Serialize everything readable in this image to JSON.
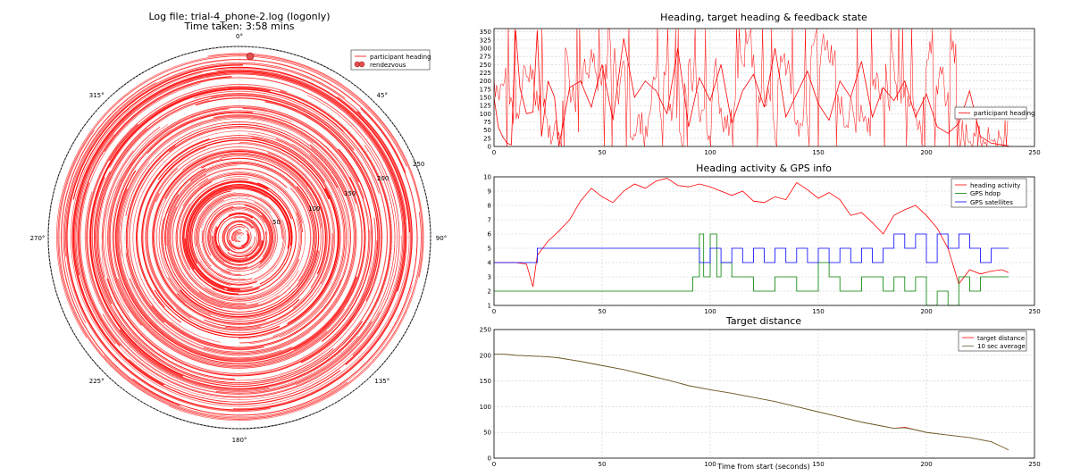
{
  "figure": {
    "polar": {
      "title_line1": "Log file: trial-4_phone-2.log (logonly)",
      "title_line2": "Time taken: 3:58 mins",
      "angle_labels": [
        "0°",
        "45°",
        "90°",
        "135°",
        "180°",
        "225°",
        "270°",
        "315°"
      ],
      "radial_ticks": [
        50,
        100,
        150,
        200,
        250
      ],
      "legend": [
        "participant heading",
        "rendezvous"
      ],
      "color": "#ff0000"
    },
    "heading": {
      "title": "Heading, target heading & feedback state",
      "legend": [
        "participant heading"
      ]
    },
    "activity": {
      "title": "Heading activity & GPS info",
      "legend": [
        "heading activity",
        "GPS hdop",
        "GPS satellites"
      ]
    },
    "distance": {
      "title": "Target distance",
      "xlabel": "Time from start (seconds)",
      "legend": [
        "target distance",
        "10 sec average"
      ]
    }
  },
  "chart_data": [
    {
      "type": "scatter",
      "subtype": "polar",
      "title": "Log file: trial-4_phone-2.log (logonly)",
      "subtitle": "Time taken: 3:58 mins",
      "rlim": [
        0,
        250
      ],
      "series": [
        {
          "name": "participant heading",
          "color": "#ff0000",
          "points": [
            [
              0,
              0
            ],
            [
              20,
              40
            ],
            [
              60,
              80
            ],
            [
              120,
              120
            ],
            [
              200,
              160
            ],
            [
              300,
              200
            ],
            [
              350,
              230
            ],
            [
              0,
              238
            ]
          ]
        },
        {
          "name": "rendezvous",
          "color": "#e05050",
          "points": [
            [
              0,
              245
            ]
          ]
        }
      ]
    },
    {
      "type": "line",
      "title": "Heading, target heading & feedback state",
      "xlim": [
        0,
        250
      ],
      "ylim": [
        0,
        360
      ],
      "xticks": [
        0,
        50,
        100,
        150,
        200,
        250
      ],
      "yticks": [
        0,
        25,
        50,
        75,
        100,
        125,
        150,
        175,
        200,
        225,
        250,
        275,
        300,
        325,
        350
      ],
      "series": [
        {
          "name": "participant heading",
          "color": "#ff0000",
          "x": [
            0,
            2,
            4,
            6,
            8,
            10,
            12,
            15,
            18,
            20,
            22,
            25,
            28,
            30,
            35,
            40,
            45,
            50,
            55,
            60,
            65,
            70,
            75,
            80,
            85,
            90,
            95,
            100,
            105,
            110,
            115,
            120,
            125,
            130,
            135,
            140,
            145,
            150,
            155,
            160,
            165,
            170,
            175,
            180,
            185,
            190,
            195,
            200,
            205,
            210,
            215,
            220,
            225,
            230,
            235,
            238
          ],
          "values": [
            150,
            60,
            30,
            10,
            5,
            355,
            180,
            100,
            105,
            355,
            30,
            200,
            150,
            0,
            180,
            200,
            120,
            250,
            80,
            330,
            150,
            200,
            170,
            100,
            300,
            60,
            210,
            140,
            250,
            70,
            170,
            220,
            120,
            300,
            90,
            160,
            230,
            130,
            80,
            200,
            150,
            260,
            90,
            180,
            140,
            200,
            90,
            160,
            60,
            40,
            70,
            170,
            30,
            10,
            5,
            2
          ]
        }
      ]
    },
    {
      "type": "line",
      "title": "Heading activity & GPS info",
      "xlim": [
        0,
        250
      ],
      "ylim": [
        1,
        10
      ],
      "xticks": [
        0,
        50,
        100,
        150,
        200,
        250
      ],
      "yticks": [
        1,
        2,
        3,
        4,
        5,
        6,
        7,
        8,
        9,
        10
      ],
      "series": [
        {
          "name": "heading activity",
          "color": "#ff0000",
          "x": [
            0,
            10,
            15,
            18,
            20,
            25,
            30,
            35,
            40,
            45,
            50,
            55,
            60,
            65,
            70,
            75,
            80,
            85,
            90,
            95,
            100,
            105,
            110,
            115,
            120,
            125,
            130,
            135,
            140,
            145,
            150,
            155,
            160,
            165,
            170,
            175,
            180,
            185,
            190,
            195,
            200,
            205,
            210,
            215,
            220,
            225,
            230,
            235,
            238
          ],
          "values": [
            4.0,
            4.0,
            3.9,
            2.3,
            4.5,
            5.5,
            6.2,
            7.0,
            8.3,
            9.2,
            8.6,
            8.2,
            9.0,
            9.5,
            9.2,
            9.7,
            9.9,
            9.4,
            9.3,
            9.5,
            9.3,
            9.0,
            8.7,
            9.0,
            8.3,
            8.2,
            8.6,
            8.4,
            9.6,
            9.1,
            8.5,
            8.9,
            8.4,
            7.3,
            7.5,
            6.8,
            6.0,
            7.3,
            7.7,
            8.0,
            7.3,
            6.4,
            5.0,
            2.5,
            3.5,
            3.2,
            3.4,
            3.5,
            3.3
          ]
        },
        {
          "name": "GPS hdop",
          "color": "#008000",
          "x": [
            0,
            90,
            92,
            95,
            97,
            100,
            103,
            105,
            110,
            115,
            120,
            130,
            140,
            150,
            155,
            160,
            170,
            180,
            185,
            190,
            195,
            200,
            205,
            210,
            215,
            220,
            225,
            230,
            235,
            238
          ],
          "values": [
            2,
            2,
            3,
            6,
            3,
            6,
            3,
            4,
            3,
            3,
            2,
            3,
            2,
            4,
            3,
            2,
            3,
            2,
            3,
            2,
            3,
            1,
            2,
            1,
            3,
            2,
            3,
            3,
            3,
            3
          ]
        },
        {
          "name": "GPS satellites",
          "color": "#0000ff",
          "x": [
            0,
            10,
            18,
            20,
            30,
            40,
            50,
            60,
            70,
            80,
            90,
            95,
            100,
            105,
            110,
            115,
            120,
            125,
            130,
            135,
            140,
            145,
            150,
            155,
            160,
            165,
            170,
            175,
            180,
            185,
            190,
            195,
            200,
            205,
            210,
            215,
            220,
            225,
            230,
            235,
            238
          ],
          "values": [
            4,
            4,
            4,
            5,
            5,
            5,
            5,
            5,
            5,
            5,
            5,
            4,
            5,
            4,
            5,
            4,
            5,
            4,
            5,
            4,
            5,
            4,
            5,
            4,
            5,
            4,
            5,
            4,
            5,
            6,
            5,
            6,
            4,
            6,
            5,
            6,
            5,
            4,
            5,
            5,
            5
          ]
        }
      ]
    },
    {
      "type": "line",
      "title": "Target distance",
      "xlabel": "Time from start (seconds)",
      "xlim": [
        0,
        250
      ],
      "ylim": [
        0,
        250
      ],
      "xticks": [
        0,
        50,
        100,
        150,
        200,
        250
      ],
      "yticks": [
        0,
        50,
        100,
        150,
        200,
        250
      ],
      "series": [
        {
          "name": "target distance",
          "color": "#ff0000",
          "x": [
            0,
            5,
            10,
            15,
            20,
            25,
            30,
            40,
            50,
            60,
            70,
            80,
            90,
            100,
            110,
            120,
            130,
            140,
            150,
            160,
            170,
            180,
            185,
            190,
            195,
            200,
            210,
            220,
            230,
            235,
            238
          ],
          "values": [
            202,
            202,
            200,
            199,
            198,
            197,
            195,
            188,
            180,
            172,
            162,
            152,
            141,
            133,
            126,
            118,
            110,
            100,
            90,
            80,
            70,
            62,
            58,
            60,
            55,
            50,
            45,
            40,
            32,
            22,
            16
          ]
        },
        {
          "name": "10 sec average",
          "color": "#556b2f",
          "x": [
            0,
            5,
            10,
            15,
            20,
            25,
            30,
            40,
            50,
            60,
            70,
            80,
            90,
            100,
            110,
            120,
            130,
            140,
            150,
            160,
            170,
            180,
            185,
            190,
            195,
            200,
            210,
            220,
            230,
            235,
            238
          ],
          "values": [
            202,
            202,
            200,
            199,
            198,
            197,
            195,
            188,
            180,
            172,
            162,
            152,
            141,
            133,
            126,
            118,
            110,
            100,
            90,
            80,
            70,
            62,
            58,
            59,
            55,
            50,
            45,
            40,
            32,
            22,
            16
          ]
        }
      ]
    }
  ]
}
